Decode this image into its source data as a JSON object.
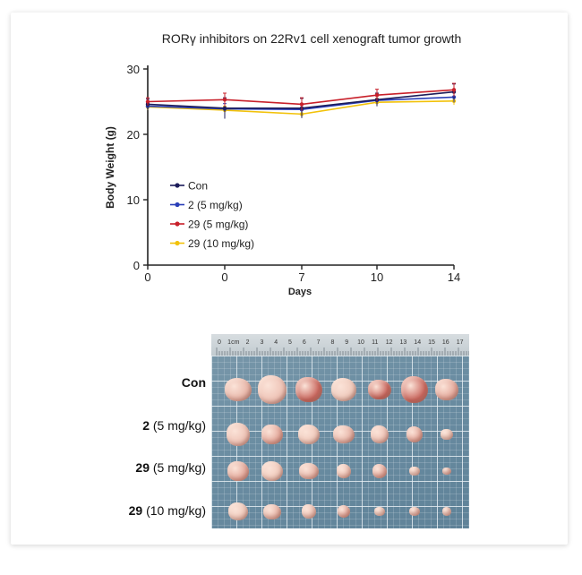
{
  "chart_data": {
    "type": "line",
    "title": "RORγ inhibitors on 22Rv1 cell xenograft tumor growth",
    "xlabel": "Days",
    "ylabel": "Body Weight (g)",
    "ylim": [
      0,
      30
    ],
    "yticks": [
      "0",
      "10",
      "20",
      "30"
    ],
    "categories": [
      "0",
      "0",
      "7",
      "10",
      "14"
    ],
    "legend_position": "lower-left",
    "series": [
      {
        "name": "Con",
        "color": "#1c1c5a",
        "values": [
          24.6,
          24.0,
          24.0,
          25.3,
          26.5
        ],
        "errors": [
          0.8,
          1.6,
          1.5,
          1.0,
          1.2
        ]
      },
      {
        "name": "2 (5 mg/kg)",
        "color": "#2a3fb8",
        "values": [
          24.3,
          23.9,
          23.8,
          25.2,
          25.7
        ],
        "errors": [
          0.5,
          0.8,
          0.9,
          0.7,
          0.8
        ]
      },
      {
        "name": "29 (5 mg/kg)",
        "color": "#c8202a",
        "values": [
          25.0,
          25.3,
          24.6,
          26.0,
          26.8
        ],
        "errors": [
          0.6,
          1.0,
          1.0,
          0.9,
          1.0
        ]
      },
      {
        "name": "29 (10 mg/kg)",
        "color": "#f2c20a",
        "values": [
          24.2,
          23.7,
          23.1,
          24.9,
          25.1
        ],
        "errors": [
          0.5,
          0.6,
          0.6,
          0.6,
          0.6
        ]
      }
    ]
  },
  "photo": {
    "rows": [
      {
        "bold": "Con",
        "rest": ""
      },
      {
        "bold": "2",
        "rest": " (5 mg/kg)"
      },
      {
        "bold": "29",
        "rest": " (5 mg/kg)"
      },
      {
        "bold": "29",
        "rest": " (10 mg/kg)"
      }
    ],
    "ruler_marks": [
      "0",
      "1cm",
      "2",
      "3",
      "4",
      "5",
      "6",
      "7",
      "8",
      "9",
      "10",
      "11",
      "12",
      "13",
      "14",
      "15",
      "16",
      "17"
    ]
  }
}
